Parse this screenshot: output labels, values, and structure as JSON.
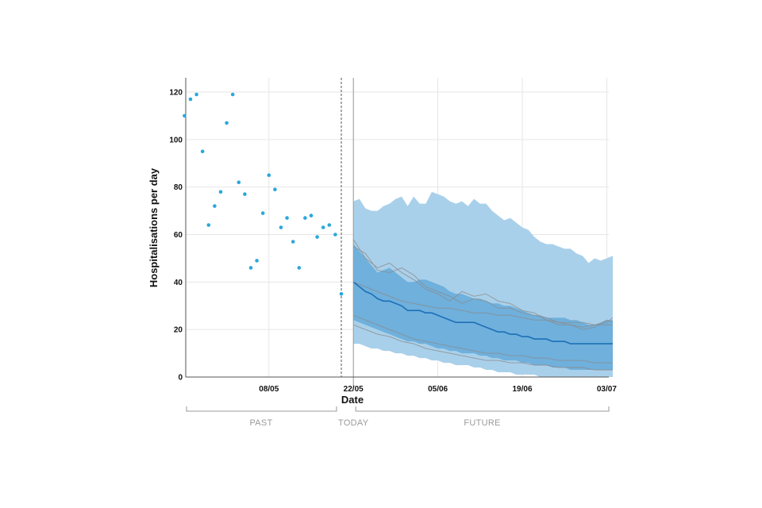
{
  "chart_data": {
    "type": "scatter",
    "xlabel": "Date",
    "ylabel": "Hospitalisations per day",
    "ylim": [
      0,
      126
    ],
    "yticks": [
      0,
      20,
      40,
      60,
      80,
      100,
      120
    ],
    "x_range_days": [
      -26,
      45
    ],
    "x_ticks": [
      {
        "label": "08/05",
        "day": -12
      },
      {
        "label": "22/05",
        "day": 2
      },
      {
        "label": "05/06",
        "day": 16
      },
      {
        "label": "19/06",
        "day": 30
      },
      {
        "label": "03/07",
        "day": 44
      }
    ],
    "today_day": 0,
    "forecast_start_day": 2,
    "sections": [
      "PAST",
      "TODAY",
      "FUTURE"
    ],
    "grid": true,
    "colors": {
      "observed": "#29a8dc",
      "median": "#1d6fb8",
      "band_outer": "#a9d0ea",
      "band_inner": "#6fb0dc",
      "trajectory": "#8c8c8c",
      "axis": "#555555",
      "grid": "#e6e6e6"
    },
    "observed": {
      "days": [
        -26,
        -25,
        -24,
        -23,
        -22,
        -21,
        -20,
        -19,
        -18,
        -17,
        -16,
        -15,
        -14,
        -13,
        -12,
        -11,
        -10,
        -9,
        -8,
        -7,
        -6,
        -5,
        -4,
        -3,
        -2,
        -1,
        0
      ],
      "values": [
        110,
        117,
        119,
        95,
        64,
        72,
        78,
        107,
        119,
        82,
        77,
        46,
        49,
        69,
        85,
        79,
        63,
        67,
        57,
        46,
        67,
        68,
        59,
        63,
        64,
        60,
        35
      ]
    },
    "forecast": {
      "days": [
        2,
        3,
        4,
        5,
        6,
        7,
        8,
        9,
        10,
        11,
        12,
        13,
        14,
        15,
        16,
        17,
        18,
        19,
        20,
        21,
        22,
        23,
        24,
        25,
        26,
        27,
        28,
        29,
        30,
        31,
        32,
        33,
        34,
        35,
        36,
        37,
        38,
        39,
        40,
        41,
        42,
        43,
        44,
        45
      ],
      "median": [
        40,
        38,
        36,
        35,
        33,
        32,
        32,
        31,
        30,
        28,
        28,
        28,
        27,
        27,
        26,
        25,
        24,
        23,
        23,
        23,
        23,
        22,
        21,
        20,
        19,
        19,
        18,
        18,
        17,
        17,
        16,
        16,
        16,
        15,
        15,
        15,
        14,
        14,
        14,
        14,
        14,
        14,
        14,
        14
      ],
      "outer_lower": [
        14,
        14,
        13,
        12,
        12,
        11,
        11,
        10,
        10,
        9,
        9,
        8,
        8,
        7,
        7,
        6,
        6,
        5,
        5,
        5,
        4,
        4,
        3,
        3,
        2,
        2,
        2,
        1,
        1,
        1,
        1,
        0,
        0,
        0,
        0,
        0,
        0,
        0,
        0,
        0,
        0,
        0,
        0,
        0
      ],
      "outer_upper": [
        74,
        75,
        71,
        70,
        70,
        72,
        73,
        75,
        76,
        72,
        76,
        73,
        73,
        78,
        77,
        76,
        74,
        73,
        74,
        72,
        75,
        73,
        73,
        70,
        68,
        66,
        67,
        65,
        63,
        62,
        59,
        57,
        56,
        56,
        55,
        54,
        54,
        52,
        51,
        48,
        50,
        49,
        50,
        51
      ],
      "inner_lower": [
        24,
        23,
        22,
        21,
        20,
        19,
        18,
        17,
        16,
        15,
        15,
        14,
        14,
        13,
        12,
        12,
        11,
        11,
        10,
        10,
        10,
        9,
        9,
        8,
        8,
        7,
        7,
        7,
        6,
        6,
        5,
        5,
        5,
        4,
        4,
        4,
        3,
        3,
        3,
        3,
        3,
        3,
        3,
        3
      ],
      "inner_upper": [
        56,
        53,
        50,
        47,
        44,
        45,
        46,
        44,
        42,
        40,
        40,
        41,
        41,
        40,
        39,
        38,
        36,
        35,
        35,
        34,
        33,
        33,
        32,
        31,
        31,
        30,
        30,
        29,
        28,
        27,
        26,
        26,
        25,
        25,
        25,
        25,
        24,
        24,
        23,
        22,
        22,
        23,
        24,
        24
      ]
    },
    "trajectories": [
      {
        "days": [
          2,
          4,
          6,
          8,
          10,
          12,
          14,
          16,
          18,
          20,
          22,
          24,
          26,
          28,
          30,
          32,
          34,
          36,
          38,
          40,
          42,
          44,
          45
        ],
        "values": [
          58,
          50,
          46,
          48,
          44,
          41,
          37,
          35,
          32,
          36,
          34,
          35,
          32,
          31,
          28,
          27,
          24,
          22,
          22,
          21,
          22,
          23,
          25
        ]
      },
      {
        "days": [
          2,
          4,
          6,
          8,
          10,
          12,
          14,
          16,
          18,
          20,
          22,
          24,
          26,
          28,
          30,
          32,
          34,
          36,
          38,
          40,
          42,
          44,
          45
        ],
        "values": [
          55,
          52,
          45,
          44,
          46,
          43,
          38,
          36,
          34,
          31,
          33,
          32,
          29,
          29,
          27,
          26,
          25,
          23,
          22,
          20,
          21,
          24,
          23
        ]
      },
      {
        "days": [
          2,
          4,
          6,
          8,
          10,
          12,
          14,
          16,
          18,
          20,
          22,
          24,
          26,
          28,
          30,
          32,
          34,
          36,
          38,
          40,
          42,
          44,
          45
        ],
        "values": [
          40,
          38,
          36,
          34,
          32,
          31,
          30,
          29,
          29,
          28,
          27,
          27,
          26,
          26,
          25,
          24,
          24,
          23,
          23,
          23,
          22,
          22,
          22
        ]
      },
      {
        "days": [
          2,
          4,
          6,
          8,
          10,
          12,
          14,
          16,
          18,
          20,
          22,
          24,
          26,
          28,
          30,
          32,
          34,
          36,
          38,
          40,
          42,
          44,
          45
        ],
        "values": [
          26,
          24,
          22,
          20,
          18,
          16,
          15,
          14,
          13,
          12,
          11,
          10,
          10,
          9,
          9,
          8,
          8,
          7,
          7,
          7,
          6,
          6,
          6
        ]
      },
      {
        "days": [
          2,
          4,
          6,
          8,
          10,
          12,
          14,
          16,
          18,
          20,
          22,
          24,
          26,
          28,
          30,
          32,
          34,
          36,
          38,
          40,
          42,
          44,
          45
        ],
        "values": [
          22,
          20,
          18,
          17,
          15,
          14,
          12,
          11,
          10,
          9,
          8,
          7,
          7,
          6,
          6,
          5,
          5,
          4,
          4,
          4,
          3,
          3,
          3
        ]
      }
    ]
  }
}
